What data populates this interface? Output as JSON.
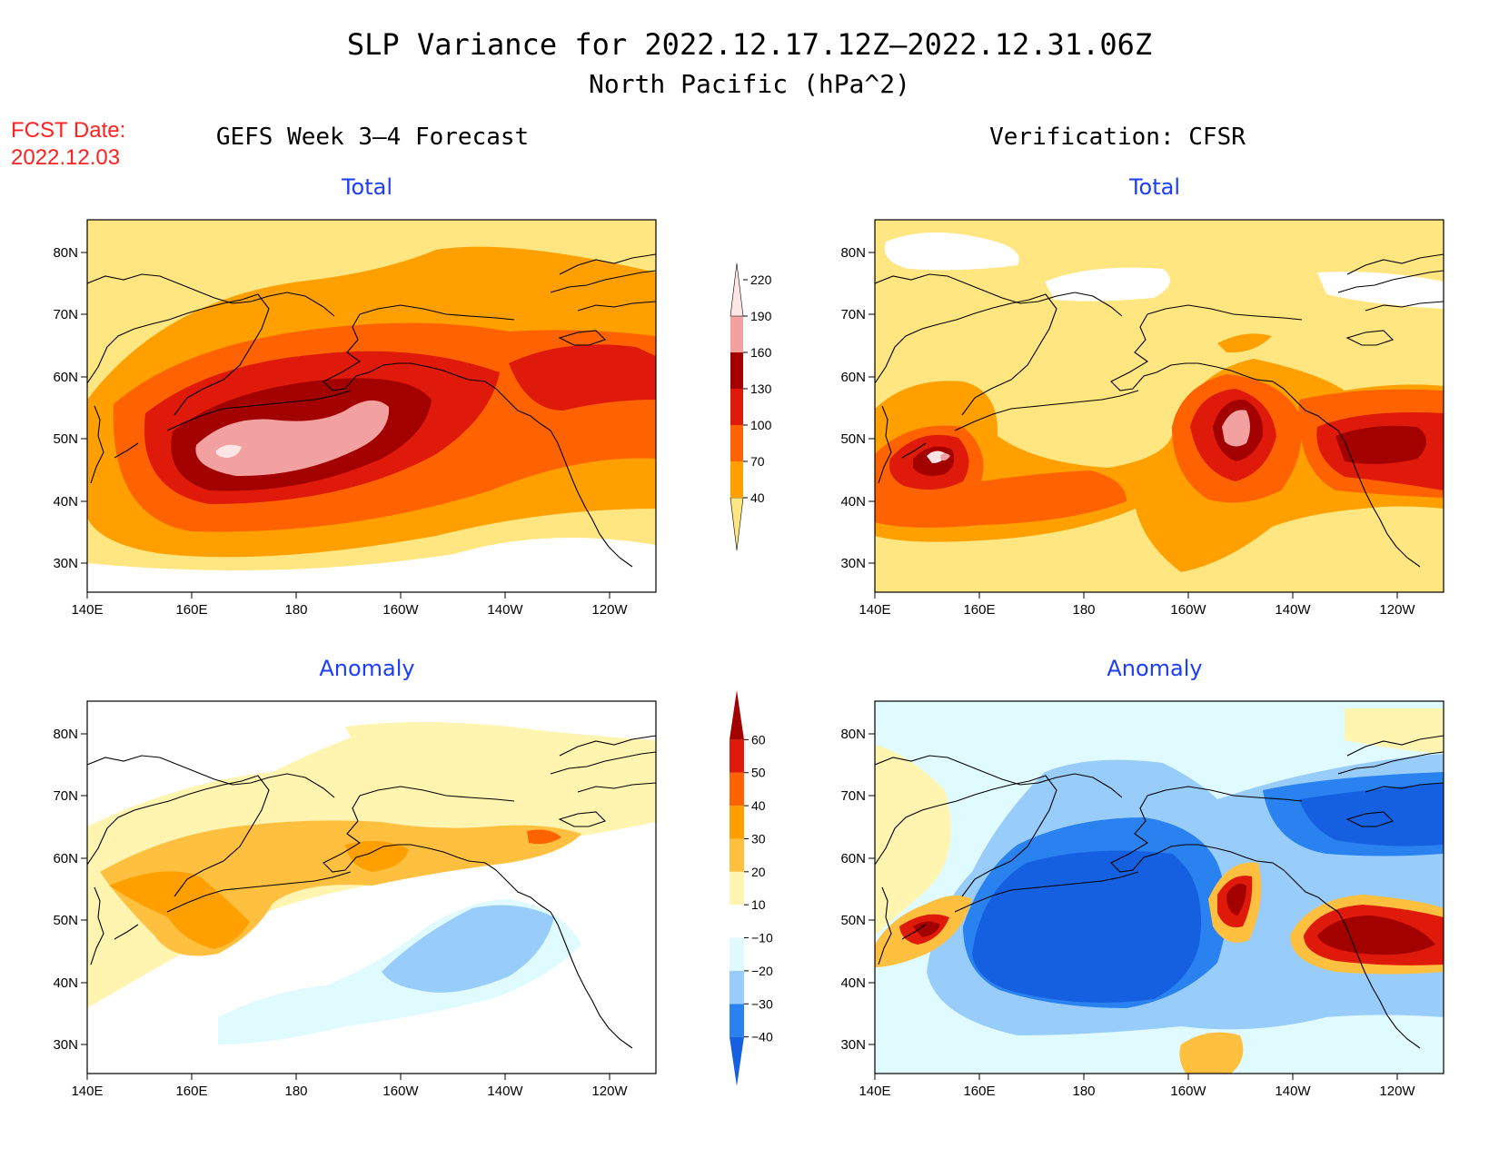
{
  "title": "SLP Variance for 2022.12.17.12Z–2022.12.31.06Z",
  "subtitle": "North Pacific (hPa^2)",
  "fcst_date_label": "FCST Date:",
  "fcst_date_value": "2022.12.03",
  "left_column_title": "GEFS Week 3–4 Forecast",
  "right_column_title": "Verification: CFSR",
  "panels": {
    "tl": {
      "title": "Total"
    },
    "tr": {
      "title": "Total"
    },
    "bl": {
      "title": "Anomaly"
    },
    "br": {
      "title": "Anomaly"
    }
  },
  "axes": {
    "lat_labels": [
      "80N",
      "70N",
      "60N",
      "50N",
      "40N",
      "30N"
    ],
    "lon_labels": [
      "140E",
      "160E",
      "180",
      "160W",
      "140W",
      "120W"
    ]
  },
  "colorbars": {
    "total": {
      "levels": [
        "40",
        "70",
        "100",
        "130",
        "160",
        "190",
        "220"
      ],
      "colors": [
        "#ffe680",
        "#ffa000",
        "#ff6200",
        "#e01a0a",
        "#a30000",
        "#f2a0a0",
        "#ffe6e6"
      ]
    },
    "anomaly": {
      "levels": [
        "−40",
        "−30",
        "−20",
        "−10",
        "10",
        "20",
        "30",
        "40",
        "50",
        "60"
      ],
      "colors": [
        "#1560e0",
        "#2a82f0",
        "#98ccfa",
        "#e0fbff",
        "#ffffff",
        "#fff5b0",
        "#ffc040",
        "#ffa000",
        "#ff6200",
        "#e01a0a",
        "#a30000"
      ]
    }
  }
}
